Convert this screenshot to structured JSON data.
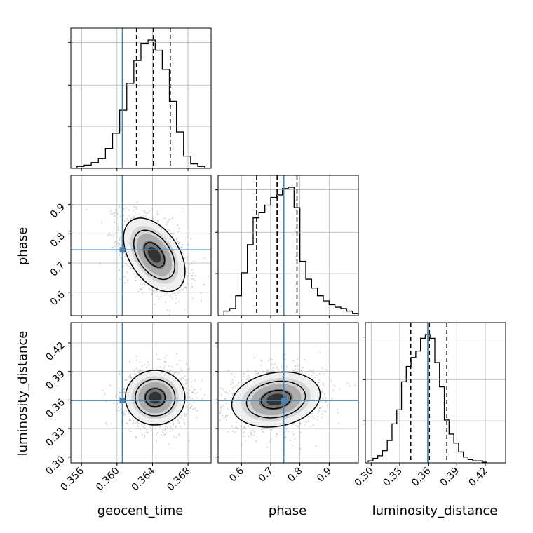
{
  "chart_data": {
    "type": "corner",
    "parameters": [
      "geocent_time",
      "phase",
      "luminosity_distance"
    ],
    "axis_labels": {
      "geocent_time": "geocent_time",
      "phase": "phase",
      "luminosity_distance": "luminosity_distance"
    },
    "ranges": {
      "geocent_time": [
        0.3548,
        0.3706
      ],
      "phase": [
        0.52,
        1.0
      ],
      "luminosity_distance": [
        0.2939,
        0.4414
      ]
    },
    "ticks": {
      "geocent_time": [
        0.356,
        0.36,
        0.364,
        0.368
      ],
      "phase": [
        0.6,
        0.7,
        0.8,
        0.9
      ],
      "luminosity_distance": [
        0.3,
        0.33,
        0.36,
        0.39,
        0.42
      ]
    },
    "tick_labels": {
      "geocent_time": [
        "0.356",
        "0.360",
        "0.364",
        "0.368"
      ],
      "phase": [
        "0.6",
        "0.7",
        "0.8",
        "0.9"
      ],
      "luminosity_distance": [
        "0.30",
        "0.33",
        "0.36",
        "0.39",
        "0.42"
      ]
    },
    "truths": {
      "geocent_time": 0.3606,
      "phase": 0.745,
      "luminosity_distance": 0.3595
    },
    "quantiles": {
      "geocent_time": [
        0.3622,
        0.3641,
        0.366
      ],
      "phase": [
        0.652,
        0.722,
        0.79
      ],
      "luminosity_distance": [
        0.3416,
        0.3612,
        0.3796
      ]
    },
    "histograms": {
      "geocent_time": {
        "edges": [
          0.3555,
          0.3563,
          0.3571,
          0.3579,
          0.3587,
          0.3595,
          0.3603,
          0.3611,
          0.3619,
          0.3627,
          0.3635,
          0.3643,
          0.3651,
          0.3659,
          0.3667,
          0.3675,
          0.3683,
          0.3691,
          0.3699
        ],
        "counts": [
          0.01,
          0.02,
          0.04,
          0.07,
          0.15,
          0.27,
          0.45,
          0.66,
          0.84,
          0.97,
          1.0,
          0.92,
          0.77,
          0.52,
          0.28,
          0.09,
          0.03,
          0.01
        ]
      },
      "phase": {
        "edges": [
          0.54,
          0.56,
          0.58,
          0.6,
          0.62,
          0.64,
          0.66,
          0.68,
          0.7,
          0.72,
          0.74,
          0.76,
          0.78,
          0.8,
          0.82,
          0.84,
          0.86,
          0.88,
          0.9,
          0.92,
          0.94,
          0.96,
          0.98,
          1.0
        ],
        "counts": [
          0.03,
          0.05,
          0.15,
          0.33,
          0.55,
          0.76,
          0.8,
          0.86,
          0.92,
          0.94,
          0.99,
          1.0,
          0.84,
          0.42,
          0.28,
          0.21,
          0.15,
          0.11,
          0.08,
          0.06,
          0.05,
          0.03,
          0.01
        ]
      },
      "luminosity_distance": {
        "edges": [
          0.2969,
          0.3019,
          0.3069,
          0.3119,
          0.3169,
          0.3219,
          0.3269,
          0.3319,
          0.3369,
          0.3419,
          0.3469,
          0.3519,
          0.3569,
          0.3619,
          0.3669,
          0.3719,
          0.3769,
          0.3819,
          0.3869,
          0.3919,
          0.3969,
          0.4019,
          0.4069,
          0.4119,
          0.4169,
          0.4219
        ],
        "counts": [
          0.01,
          0.03,
          0.05,
          0.09,
          0.17,
          0.3,
          0.41,
          0.63,
          0.75,
          0.82,
          0.87,
          0.97,
          1.0,
          0.97,
          0.78,
          0.59,
          0.33,
          0.22,
          0.15,
          0.08,
          0.04,
          0.02,
          0.01,
          0.01,
          0.0
        ]
      }
    },
    "density_2d": [
      {
        "x": "geocent_time",
        "y": "phase",
        "center": [
          0.3642,
          0.728
        ],
        "sigma": [
          0.00165,
          0.06
        ],
        "rho": -0.45
      },
      {
        "x": "geocent_time",
        "y": "luminosity_distance",
        "center": [
          0.3643,
          0.3625
        ],
        "sigma": [
          0.0016,
          0.0137
        ],
        "rho": 0.0
      },
      {
        "x": "phase",
        "y": "luminosity_distance",
        "center": [
          0.718,
          0.3605
        ],
        "sigma": [
          0.072,
          0.0138
        ],
        "rho": 0.18
      }
    ],
    "grid": true,
    "colors": {
      "truth": "#4682b4",
      "hist_line": "#000000",
      "quantile_line": "#000000",
      "grid": "#b0b0b0",
      "scatter": "#909090"
    }
  }
}
